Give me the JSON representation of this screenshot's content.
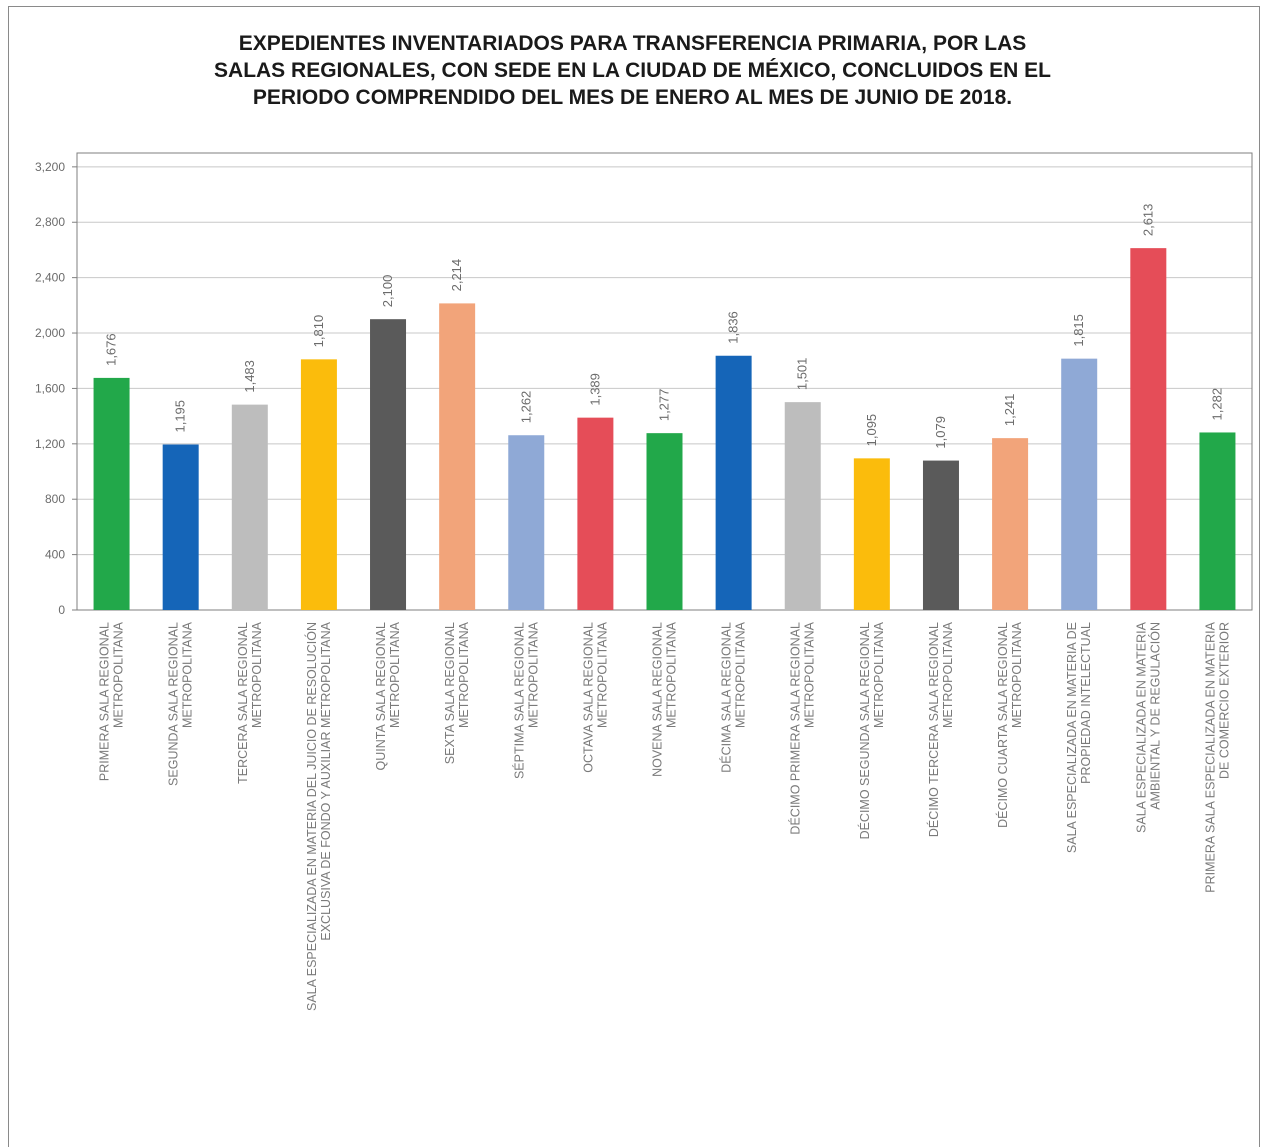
{
  "chart_data": {
    "type": "bar",
    "title_lines": [
      "EXPEDIENTES INVENTARIADOS PARA TRANSFERENCIA PRIMARIA, POR LAS",
      "SALAS REGIONALES, CON SEDE EN LA CIUDAD DE MÉXICO, CONCLUIDOS EN EL",
      "PERIODO COMPRENDIDO DEL MES DE ENERO AL MES DE JUNIO DE 2018."
    ],
    "categories": [
      [
        "PRIMERA SALA REGIONAL",
        "METROPOLITANA"
      ],
      [
        "SEGUNDA SALA REGIONAL",
        "METROPOLITANA"
      ],
      [
        "TERCERA SALA REGIONAL",
        "METROPOLITANA"
      ],
      [
        "SALA ESPECIALIZADA EN MATERIA DEL JUICIO DE RESOLUCIÓN",
        "EXCLUSIVA DE FONDO Y AUXILIAR METROPOLITANA"
      ],
      [
        "QUINTA SALA REGIONAL",
        "METROPOLITANA"
      ],
      [
        "SEXTA SALA REGIONAL",
        "METROPOLITANA"
      ],
      [
        "SÉPTIMA SALA REGIONAL",
        "METROPOLITANA"
      ],
      [
        "OCTAVA SALA REGIONAL",
        "METROPOLITANA"
      ],
      [
        "NOVENA SALA REGIONAL",
        "METROPOLITANA"
      ],
      [
        "DÉCIMA SALA REGIONAL",
        "METROPOLITANA"
      ],
      [
        "DÉCIMO PRIMERA SALA REGIONAL",
        "METROPOLITANA"
      ],
      [
        "DÉCIMO SEGUNDA SALA REGIONAL",
        "METROPOLITANA"
      ],
      [
        "DÉCIMO TERCERA SALA REGIONAL",
        "METROPOLITANA"
      ],
      [
        "DÉCIMO CUARTA SALA REGIONAL",
        "METROPOLITANA"
      ],
      [
        "SALA ESPECIALIZADA EN MATERIA DE",
        "PROPIEDAD INTELECTUAL"
      ],
      [
        "SALA ESPECIALIZADA EN MATERIA",
        "AMBIENTAL Y DE REGULACIÓN"
      ],
      [
        "PRIMERA SALA ESPECIALIZADA EN MATERIA",
        "DE COMERCIO EXTERIOR"
      ]
    ],
    "values": [
      1676,
      1195,
      1483,
      1810,
      2100,
      2214,
      1262,
      1389,
      1277,
      1836,
      1501,
      1095,
      1079,
      1241,
      1815,
      2613,
      1282
    ],
    "value_labels": [
      "1,676",
      "1,195",
      "1,483",
      "1,810",
      "2,100",
      "2,214",
      "1,262",
      "1,389",
      "1,277",
      "1,836",
      "1,501",
      "1,095",
      "1,079",
      "1,241",
      "1,815",
      "2,613",
      "1,282"
    ],
    "colors": [
      "#22a84a",
      "#1565b8",
      "#bdbdbd",
      "#fbbc0c",
      "#5a5a5a",
      "#f2a47a",
      "#8fa9d6",
      "#e54d58",
      "#22a84a",
      "#1565b8",
      "#bdbdbd",
      "#fbbc0c",
      "#5a5a5a",
      "#f2a47a",
      "#8fa9d6",
      "#e54d58",
      "#22a84a"
    ],
    "y_ticks": [
      "0",
      "400",
      "800",
      "1,200",
      "1,600",
      "2,000",
      "2,400",
      "2,800",
      "3,200"
    ],
    "ylim": [
      0,
      3300
    ],
    "grid": true,
    "legend": "none"
  }
}
